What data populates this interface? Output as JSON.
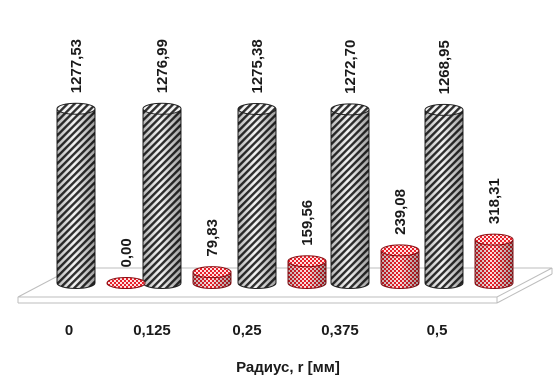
{
  "chart_data": {
    "type": "bar",
    "style": "3d-cylinder",
    "xlabel": "Радиус, r [мм]",
    "categories": [
      "0",
      "0,125",
      "0,25",
      "0,375",
      "0,5"
    ],
    "series": [
      {
        "values": [
          1277.53,
          1276.99,
          1275.38,
          1272.7,
          1268.95
        ],
        "labels": [
          "1277,53",
          "1276,99",
          "1275,38",
          "1272,70",
          "1268,95"
        ],
        "fill": "diagonal-hatch",
        "color": "#3a3a3a"
      },
      {
        "values": [
          0.0,
          79.83,
          159.56,
          239.08,
          318.31
        ],
        "labels": [
          "0,00",
          "79,83",
          "159,56",
          "239,08",
          "318,31"
        ],
        "fill": "checker",
        "color": "#e8202a"
      }
    ],
    "ylim": [
      0,
      1400
    ],
    "grid": false,
    "legend": "none"
  }
}
